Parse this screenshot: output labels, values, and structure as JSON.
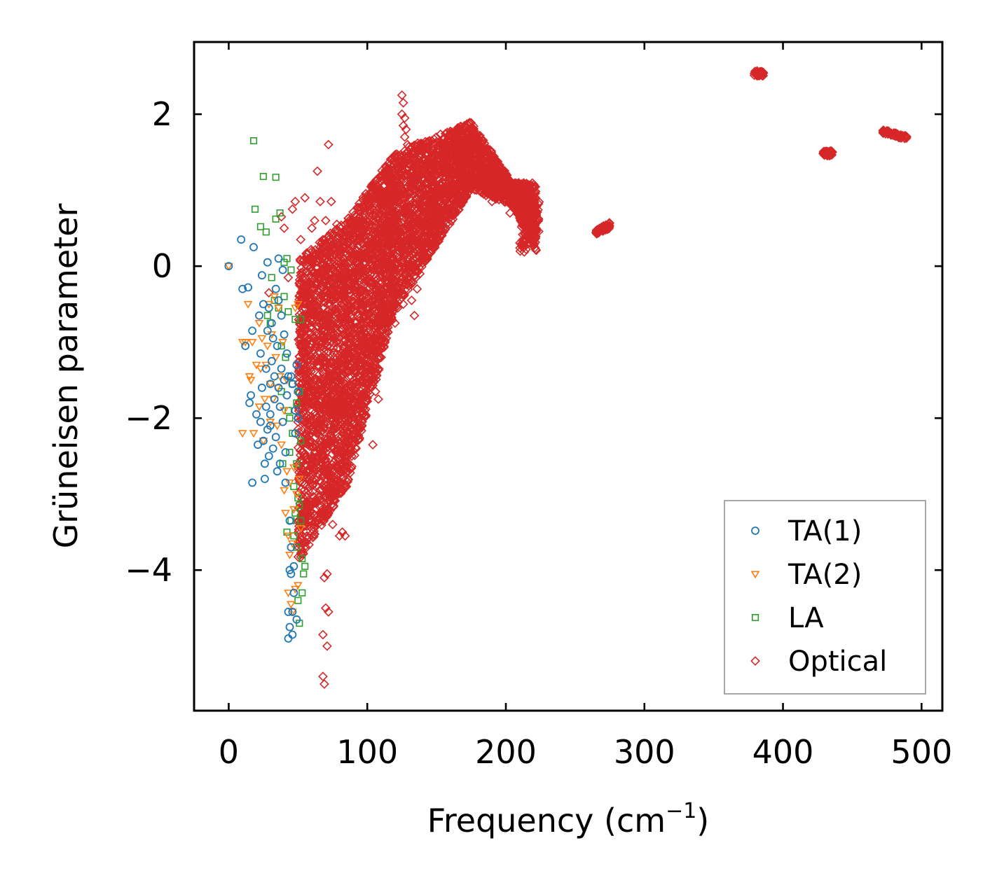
{
  "chart_data": {
    "type": "scatter",
    "title": "",
    "xlabel": "Frequency (cm",
    "xlabel_sup": "−1",
    "xlabel_close": ")",
    "ylabel": "Grüneisen parameter",
    "xlim": [
      -25,
      515
    ],
    "ylim": [
      -5.85,
      2.95
    ],
    "xticks": [
      0,
      100,
      200,
      300,
      400,
      500
    ],
    "xtick_labels": [
      "0",
      "100",
      "200",
      "300",
      "400",
      "500"
    ],
    "yticks": [
      -4,
      -2,
      0,
      2
    ],
    "ytick_labels": [
      "−4",
      "−2",
      "0",
      "2"
    ],
    "grid": false,
    "legend_position": "bottom-right",
    "series": [
      {
        "name": "TA(1)",
        "label": "TA(1)",
        "color": "#1f77b4",
        "marker": "circle",
        "points": [
          [
            0,
            0
          ],
          [
            9,
            0.35
          ],
          [
            10,
            -0.3
          ],
          [
            12,
            -1.05
          ],
          [
            14,
            -0.28
          ],
          [
            15,
            -1.8
          ],
          [
            16,
            -1.7
          ],
          [
            17,
            -0.85
          ],
          [
            17,
            -2.85
          ],
          [
            18,
            0.25
          ],
          [
            20,
            -1.95
          ],
          [
            21,
            -2.35
          ],
          [
            22,
            -0.65
          ],
          [
            23,
            -1.15
          ],
          [
            23,
            -2.05
          ],
          [
            24,
            -0.12
          ],
          [
            24,
            -1.6
          ],
          [
            25,
            -0.5
          ],
          [
            25,
            -2.3
          ],
          [
            26,
            -2.6
          ],
          [
            26,
            -2.8
          ],
          [
            27,
            -1.35
          ],
          [
            27,
            -1.85
          ],
          [
            28,
            0.05
          ],
          [
            28,
            -0.85
          ],
          [
            28,
            -2.15
          ],
          [
            29,
            -0.55
          ],
          [
            29,
            -2.5
          ],
          [
            30,
            -1.55
          ],
          [
            30,
            -1.95
          ],
          [
            30,
            -2.1
          ],
          [
            31,
            -0.75
          ],
          [
            31,
            -1.25
          ],
          [
            32,
            -0.95
          ],
          [
            32,
            -2.4
          ],
          [
            33,
            -1.45
          ],
          [
            33,
            -1.75
          ],
          [
            34,
            -0.3
          ],
          [
            34,
            -2.25
          ],
          [
            35,
            -1.05
          ],
          [
            35,
            -2.7
          ],
          [
            36,
            0.1
          ],
          [
            36,
            -0.45
          ],
          [
            36,
            -1.6
          ],
          [
            37,
            -2.6
          ],
          [
            37,
            -1.85
          ],
          [
            38,
            -0.65
          ],
          [
            38,
            -1.35
          ],
          [
            39,
            -0.05
          ],
          [
            39,
            -2.05
          ],
          [
            40,
            -0.9
          ],
          [
            40,
            -1.5
          ],
          [
            41,
            -2.45
          ],
          [
            41,
            -2.85
          ],
          [
            42,
            -1.15
          ],
          [
            42,
            -1.7
          ],
          [
            43,
            -4.55
          ],
          [
            43,
            -4.9
          ],
          [
            43,
            -1.45
          ],
          [
            44,
            -4.0
          ],
          [
            44,
            -3.35
          ],
          [
            44,
            -4.75
          ],
          [
            45,
            -1.45
          ],
          [
            45,
            -4.05
          ],
          [
            45,
            -3.7
          ],
          [
            46,
            -4.55
          ],
          [
            46,
            -1.55
          ],
          [
            46,
            -4.85
          ],
          [
            47,
            -3.95
          ],
          [
            47,
            -4.3
          ],
          [
            48,
            -1.9
          ],
          [
            48,
            -2.2
          ],
          [
            49,
            -1.3
          ],
          [
            49,
            -4.65
          ],
          [
            50,
            -1.65
          ],
          [
            50,
            -2.0
          ]
        ]
      },
      {
        "name": "TA(2)",
        "label": "TA(2)",
        "color": "#ff7f0e",
        "marker": "triangle",
        "points": [
          [
            0,
            0
          ],
          [
            10,
            -1.0
          ],
          [
            10,
            -2.2
          ],
          [
            12,
            -1.0
          ],
          [
            14,
            -0.5
          ],
          [
            15,
            -1.45
          ],
          [
            16,
            -1.5
          ],
          [
            17,
            -1.0
          ],
          [
            18,
            -2.2
          ],
          [
            20,
            -1.3
          ],
          [
            22,
            -1.85
          ],
          [
            22,
            -0.75
          ],
          [
            23,
            -1.35
          ],
          [
            24,
            -0.95
          ],
          [
            25,
            -2.3
          ],
          [
            26,
            -1.75
          ],
          [
            27,
            -1.3
          ],
          [
            28,
            -1.05
          ],
          [
            29,
            -0.5
          ],
          [
            30,
            -1.55
          ],
          [
            30,
            -2.05
          ],
          [
            31,
            -0.9
          ],
          [
            32,
            -1.75
          ],
          [
            33,
            -0.4
          ],
          [
            34,
            -1.2
          ],
          [
            35,
            -1.6
          ],
          [
            35,
            -2.1
          ],
          [
            36,
            -0.55
          ],
          [
            37,
            -1.45
          ],
          [
            38,
            -2.35
          ],
          [
            39,
            -1.0
          ],
          [
            40,
            -1.9
          ],
          [
            40,
            -2.95
          ],
          [
            41,
            -3.25
          ],
          [
            42,
            -1.5
          ],
          [
            42,
            -2.7
          ],
          [
            43,
            -3.55
          ],
          [
            43,
            -4.3
          ],
          [
            44,
            -2.85
          ],
          [
            44,
            -3.8
          ],
          [
            45,
            -4.45
          ],
          [
            46,
            -3.65
          ],
          [
            46,
            -4.55
          ],
          [
            47,
            -3.2
          ],
          [
            47,
            -2.65
          ],
          [
            48,
            -4.25
          ],
          [
            48,
            -0.55
          ],
          [
            49,
            -3.0
          ],
          [
            50,
            -0.5
          ],
          [
            50,
            -4.2
          ],
          [
            51,
            -2.8
          ],
          [
            52,
            -3.45
          ]
        ]
      },
      {
        "name": "LA",
        "label": "LA",
        "color": "#2ca02c",
        "marker": "square",
        "points": [
          [
            18,
            1.65
          ],
          [
            19,
            0.75
          ],
          [
            23,
            0.52
          ],
          [
            25,
            1.18
          ],
          [
            27,
            0.45
          ],
          [
            28,
            -0.65
          ],
          [
            30,
            -0.75
          ],
          [
            31,
            -0.15
          ],
          [
            33,
            -0.45
          ],
          [
            34,
            0.62
          ],
          [
            34,
            1.17
          ],
          [
            36,
            -0.55
          ],
          [
            37,
            0.7
          ],
          [
            38,
            -1.05
          ],
          [
            38,
            -1.65
          ],
          [
            39,
            -2.6
          ],
          [
            40,
            0.05
          ],
          [
            40,
            -0.4
          ],
          [
            41,
            -1.2
          ],
          [
            42,
            0.1
          ],
          [
            42,
            -3.5
          ],
          [
            43,
            -0.6
          ],
          [
            43,
            -1.9
          ],
          [
            44,
            -2.0
          ],
          [
            44,
            -2.45
          ],
          [
            45,
            -0.05
          ],
          [
            45,
            -3.35
          ],
          [
            46,
            -2.2
          ],
          [
            46,
            -1.55
          ],
          [
            47,
            -3.55
          ],
          [
            47,
            -2.9
          ],
          [
            48,
            -3.25
          ],
          [
            48,
            -0.7
          ],
          [
            49,
            -2.6
          ],
          [
            49,
            -1.8
          ],
          [
            49,
            -3.7
          ],
          [
            50,
            -3.05
          ],
          [
            50,
            -4.4
          ],
          [
            51,
            -3.15
          ],
          [
            51,
            -1.65
          ],
          [
            51,
            -4.7
          ],
          [
            52,
            -2.3
          ],
          [
            52,
            -0.7
          ],
          [
            52,
            -3.35
          ],
          [
            53,
            -3.85
          ],
          [
            53,
            -4.3
          ],
          [
            54,
            -4.05
          ],
          [
            55,
            -3.95
          ]
        ]
      },
      {
        "name": "Optical",
        "label": "Optical",
        "color": "#d62728",
        "marker": "diamond",
        "points": [
          [
            29,
            -0.35
          ],
          [
            38,
            0.65
          ],
          [
            40,
            0.5
          ],
          [
            43,
            -0.15
          ],
          [
            46,
            0.75
          ],
          [
            48,
            0.85
          ],
          [
            52,
            0.35
          ],
          [
            55,
            0.9
          ],
          [
            58,
            -1.5
          ],
          [
            60,
            0.5
          ],
          [
            62,
            0.6
          ],
          [
            64,
            1.25
          ],
          [
            66,
            0.85
          ],
          [
            67,
            0.3
          ],
          [
            68,
            -4.85
          ],
          [
            68,
            -5.4
          ],
          [
            69,
            -5.5
          ],
          [
            69,
            -4.1
          ],
          [
            70,
            0.6
          ],
          [
            70,
            -4.5
          ],
          [
            71,
            -5.0
          ],
          [
            71,
            -4.05
          ],
          [
            72,
            -4.55
          ],
          [
            72,
            1.6
          ],
          [
            74,
            0.85
          ],
          [
            75,
            -3.4
          ],
          [
            76,
            -3.0
          ],
          [
            78,
            0.55
          ],
          [
            80,
            -3.55
          ],
          [
            82,
            -3.5
          ],
          [
            84,
            -3.55
          ],
          [
            85,
            -2.9
          ],
          [
            86,
            0.5
          ],
          [
            88,
            0.4
          ],
          [
            92,
            0.2
          ],
          [
            95,
            -1.3
          ],
          [
            98,
            0.35
          ],
          [
            100,
            -0.7
          ],
          [
            102,
            0.5
          ],
          [
            104,
            -2.35
          ],
          [
            106,
            -1.65
          ],
          [
            108,
            -1.75
          ],
          [
            110,
            -1.2
          ],
          [
            112,
            -0.75
          ],
          [
            116,
            -0.5
          ],
          [
            118,
            -0.6
          ],
          [
            120,
            -0.75
          ],
          [
            122,
            -0.55
          ],
          [
            124,
            -0.35
          ],
          [
            126,
            -0.5
          ],
          [
            128,
            -0.2
          ],
          [
            130,
            -0.15
          ],
          [
            132,
            -0.45
          ],
          [
            134,
            -0.65
          ],
          [
            136,
            -0.3
          ],
          [
            138,
            -0.1
          ],
          [
            140,
            0.1
          ],
          [
            142,
            0.25
          ],
          [
            145,
            0.6
          ],
          [
            148,
            0.3
          ],
          [
            150,
            0.55
          ],
          [
            125,
            2.25
          ],
          [
            126,
            2.15
          ],
          [
            125,
            2.0
          ],
          [
            127,
            1.95
          ],
          [
            126,
            1.85
          ],
          [
            127,
            1.7
          ],
          [
            128,
            1.8
          ],
          [
            129,
            1.6
          ],
          [
            185,
            1.05
          ],
          [
            188,
            0.95
          ],
          [
            190,
            0.85
          ],
          [
            193,
            1.2
          ],
          [
            196,
            1.0
          ],
          [
            198,
            0.95
          ],
          [
            200,
            1.05
          ],
          [
            203,
            0.7
          ],
          [
            207,
            0.9
          ]
        ]
      }
    ],
    "dense_regions": [
      {
        "series": "Optical",
        "count": 1600,
        "x_from": 50,
        "x_to": 85,
        "y_low_from": -3.9,
        "y_low_to": -2.9,
        "y_high_from": 0.1,
        "y_high_to": 0.6
      },
      {
        "series": "Optical",
        "count": 1400,
        "x_from": 85,
        "x_to": 120,
        "y_low_from": -2.9,
        "y_low_to": -0.6,
        "y_high_from": 0.6,
        "y_high_to": 1.5
      },
      {
        "series": "Optical",
        "count": 1400,
        "x_from": 120,
        "x_to": 175,
        "y_low_from": -0.6,
        "y_low_to": 1.0,
        "y_high_from": 1.5,
        "y_high_to": 1.9
      },
      {
        "series": "Optical",
        "count": 500,
        "x_from": 175,
        "x_to": 205,
        "y_low_from": 1.0,
        "y_low_to": 0.8,
        "y_high_from": 1.9,
        "y_high_to": 1.1
      },
      {
        "series": "Optical",
        "count": 450,
        "x_from": 205,
        "x_to": 222,
        "y_low_from": 0.8,
        "y_low_to": 0.2,
        "y_high_from": 1.1,
        "y_high_to": 1.1
      },
      {
        "series": "Optical",
        "count": 80,
        "x_from": 210,
        "x_to": 224,
        "y_low_from": 0.1,
        "y_low_to": 0.45,
        "y_high_from": 0.5,
        "y_high_to": 0.85
      },
      {
        "series": "Optical",
        "count": 80,
        "x_from": 265,
        "x_to": 275,
        "y_low_from": 0.42,
        "y_low_to": 0.5,
        "y_high_from": 0.47,
        "y_high_to": 0.58
      },
      {
        "series": "Optical",
        "count": 40,
        "x_from": 379,
        "x_to": 386,
        "y_low_from": 2.5,
        "y_low_to": 2.5,
        "y_high_from": 2.57,
        "y_high_to": 2.57
      },
      {
        "series": "Optical",
        "count": 40,
        "x_from": 429,
        "x_to": 436,
        "y_low_from": 1.45,
        "y_low_to": 1.45,
        "y_high_from": 1.52,
        "y_high_to": 1.52
      },
      {
        "series": "Optical",
        "count": 60,
        "x_from": 472,
        "x_to": 490,
        "y_low_from": 1.75,
        "y_low_to": 1.66,
        "y_high_from": 1.8,
        "y_high_to": 1.71
      }
    ]
  }
}
